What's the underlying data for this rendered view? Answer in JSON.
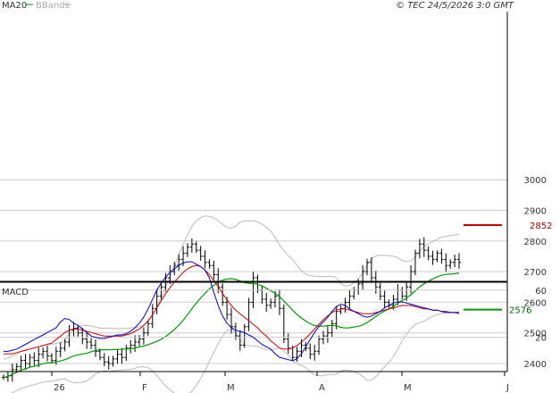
{
  "header": {
    "legend_ma": "MA20",
    "legend_bb": "BBands",
    "copyright": "© TEC 24/5/2026 3:0 GMT"
  },
  "colors": {
    "grid": "#cccccc",
    "price_bars": "#000000",
    "ma20": "#009900",
    "bbands": "#bbbbbb",
    "resistance": "#cc0000",
    "support": "#009900",
    "macd": "#0000cc",
    "signal": "#cc0000"
  },
  "chart_data": [
    {
      "type": "ohlc",
      "name": "price",
      "y_ticks": [
        "2400",
        "2500",
        "2600",
        "2700",
        "2800",
        "2900",
        "3000"
      ],
      "ylim": [
        2200,
        3050
      ],
      "x_tick_labels": [
        "26",
        "F",
        "M",
        "A",
        "M",
        "J"
      ],
      "legend": [
        "MA20",
        "BBands"
      ],
      "resistance": {
        "value": 2852,
        "label": "2852"
      },
      "support": {
        "value": 2576,
        "label": "2576"
      },
      "grid": true,
      "close": [
        2355,
        2360,
        2380,
        2390,
        2410,
        2400,
        2420,
        2410,
        2430,
        2440,
        2425,
        2410,
        2440,
        2450,
        2470,
        2510,
        2515,
        2500,
        2480,
        2470,
        2460,
        2440,
        2420,
        2405,
        2400,
        2415,
        2430,
        2420,
        2450,
        2460,
        2470,
        2480,
        2500,
        2530,
        2580,
        2620,
        2650,
        2680,
        2700,
        2720,
        2740,
        2760,
        2780,
        2790,
        2770,
        2750,
        2730,
        2720,
        2690,
        2650,
        2600,
        2560,
        2520,
        2490,
        2460,
        2520,
        2600,
        2680,
        2640,
        2610,
        2590,
        2600,
        2620,
        2580,
        2480,
        2450,
        2420,
        2440,
        2460,
        2450,
        2430,
        2440,
        2480,
        2490,
        2500,
        2530,
        2570,
        2580,
        2600,
        2620,
        2640,
        2660,
        2700,
        2730,
        2680,
        2650,
        2620,
        2600,
        2590,
        2610,
        2640,
        2620,
        2650,
        2700,
        2760,
        2790,
        2770,
        2750,
        2740,
        2760,
        2740,
        2720,
        2730,
        2740,
        2730
      ]
    },
    {
      "type": "line",
      "name": "MACD",
      "title": "MACD",
      "y_ticks": [
        "20",
        "60"
      ],
      "ylim": [
        -10,
        90
      ],
      "series": [
        {
          "name": "MACD",
          "values": [
            8,
            8,
            9,
            10,
            12,
            14,
            16,
            18,
            20,
            22,
            24,
            26,
            28,
            33,
            36,
            35,
            32,
            30,
            27,
            24,
            21,
            20,
            19,
            19,
            20,
            21,
            22,
            22,
            23,
            25,
            28,
            32,
            37,
            44,
            52,
            60,
            66,
            71,
            75,
            78,
            81,
            83,
            84,
            84,
            82,
            80,
            77,
            70,
            58,
            47,
            38,
            32,
            28,
            26,
            25,
            24,
            22,
            20,
            17,
            14,
            12,
            10,
            6,
            3,
            2,
            1,
            0,
            2,
            6,
            12,
            18,
            24,
            29,
            33,
            37,
            42,
            46,
            48,
            47,
            44,
            42,
            40,
            38,
            37,
            38,
            40,
            42,
            45,
            47,
            49,
            50,
            50,
            49,
            48,
            47,
            46,
            45,
            44,
            43,
            43,
            42,
            41,
            41,
            41,
            41
          ]
        },
        {
          "name": "Signal",
          "values": [
            6,
            6,
            6,
            7,
            8,
            9,
            10,
            11,
            12,
            13,
            14,
            15,
            18,
            21,
            24,
            26,
            27,
            27,
            26,
            25,
            24,
            23,
            22,
            21,
            21,
            21,
            21,
            21,
            22,
            23,
            25,
            27,
            30,
            34,
            39,
            45,
            51,
            57,
            62,
            67,
            71,
            75,
            78,
            80,
            81,
            80,
            77,
            73,
            68,
            63,
            57,
            52,
            47,
            43,
            40,
            37,
            34,
            31,
            28,
            24,
            21,
            17,
            14,
            11,
            10,
            10,
            11,
            13,
            16,
            19,
            23,
            27,
            31,
            35,
            38,
            41,
            43,
            44,
            44,
            43,
            42,
            41,
            40,
            40,
            40,
            41,
            42,
            43,
            44,
            45,
            46,
            47,
            47,
            47,
            46,
            45,
            44,
            44,
            43,
            43,
            42,
            42,
            41,
            41,
            40
          ]
        }
      ]
    }
  ]
}
